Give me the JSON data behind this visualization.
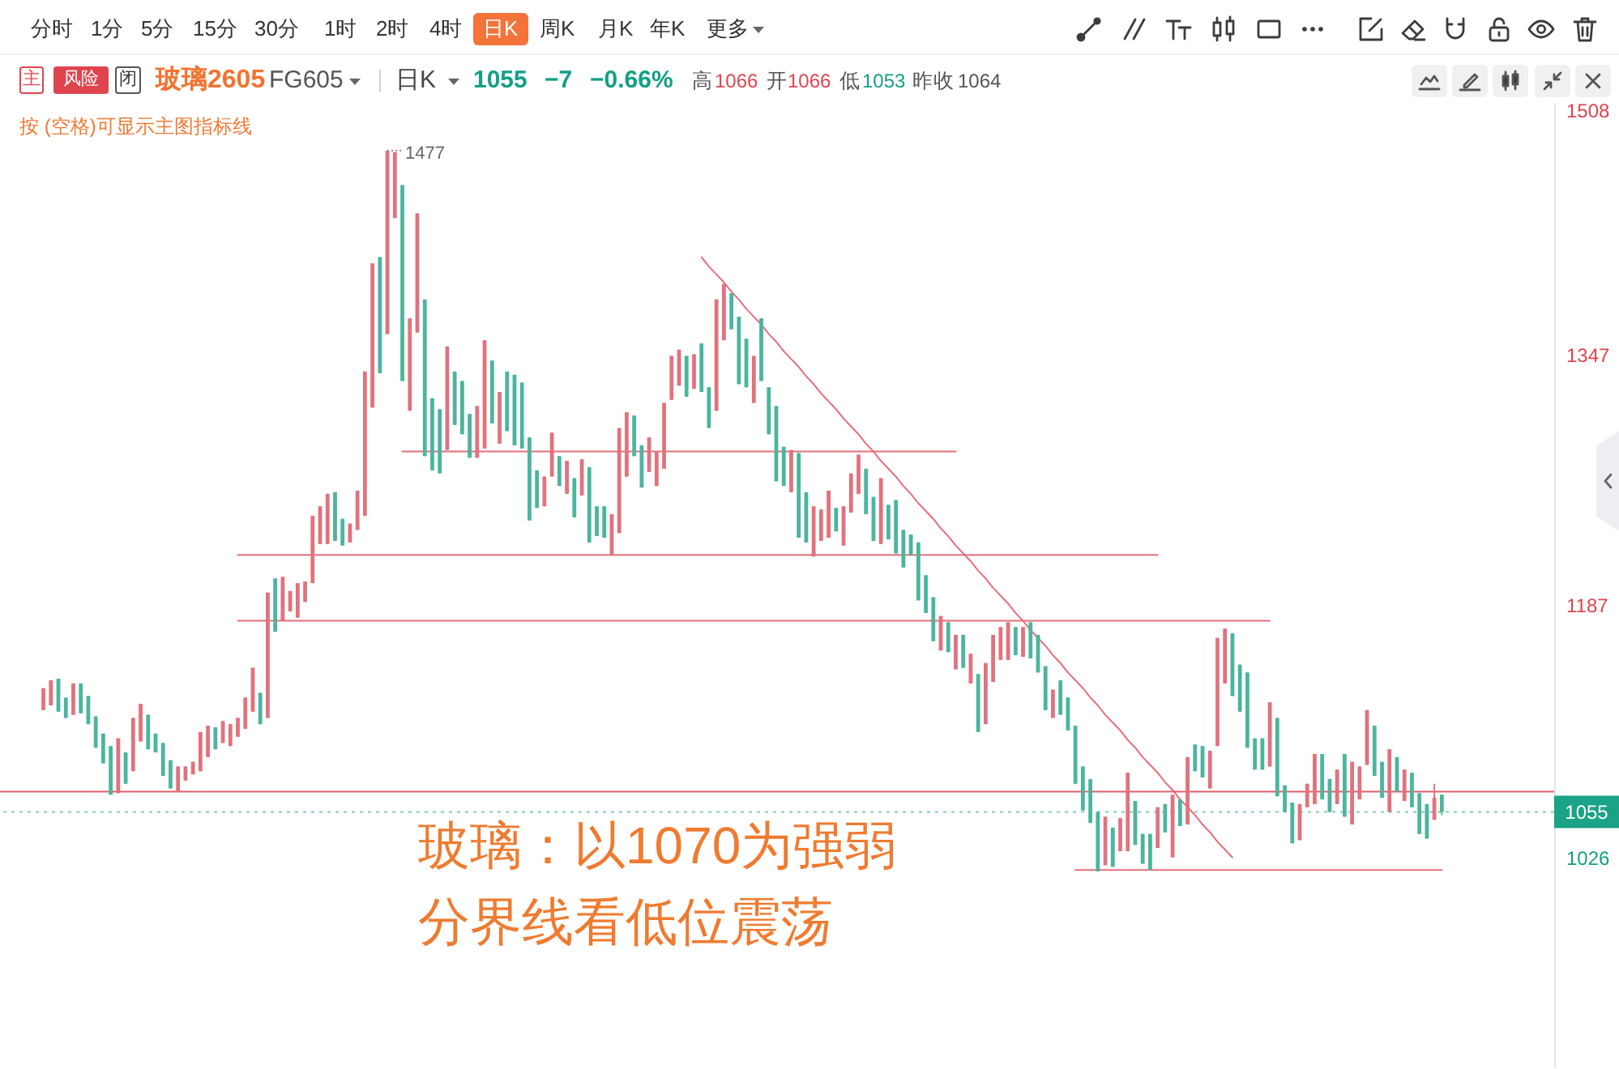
{
  "chart_data": {
    "type": "candlestick",
    "title": "玻璃2605",
    "subtitle": "FG605",
    "categories": [
      null,
      null,
      null,
      null,
      null,
      null,
      null,
      null,
      null,
      null,
      null,
      null,
      null,
      null,
      null,
      null,
      null,
      null,
      null,
      null,
      null,
      null,
      null,
      null,
      null,
      null,
      null,
      null,
      null,
      null,
      null,
      null,
      null,
      null,
      null,
      null,
      null,
      null,
      null,
      null,
      null,
      null,
      null,
      null,
      null,
      null,
      null,
      null,
      null,
      null,
      null,
      null,
      null,
      null,
      null,
      null,
      null,
      null,
      null,
      null,
      null,
      null,
      null,
      null,
      null,
      null,
      null,
      null,
      null,
      null,
      null,
      null,
      null,
      null,
      null,
      null,
      null,
      null,
      null,
      null,
      null,
      null,
      null,
      null,
      null,
      null,
      null,
      null,
      null,
      null,
      null,
      null,
      null,
      null,
      null,
      null,
      null,
      null,
      null,
      null,
      null,
      null,
      null,
      null,
      null,
      null,
      null,
      null,
      null,
      null,
      null,
      null,
      null,
      null,
      null,
      null,
      null,
      null,
      null,
      null,
      null,
      null,
      null,
      null,
      null,
      null,
      null,
      null,
      null,
      null,
      null,
      null,
      null,
      null,
      null,
      null,
      null,
      null,
      null,
      null,
      null,
      null,
      null,
      null,
      null,
      null,
      null,
      null,
      null,
      null,
      null,
      null,
      null,
      null,
      null,
      null,
      null,
      null,
      null,
      null,
      null,
      null,
      null,
      null,
      null,
      null,
      null,
      null,
      null,
      null,
      null,
      null,
      null,
      null,
      null,
      null,
      null,
      null,
      null,
      null,
      null,
      null,
      null,
      null,
      null,
      null,
      null,
      null
    ],
    "ohlc": [
      [
        1120,
        1134,
        1120,
        1134
      ],
      [
        1123,
        1139,
        1123,
        1139
      ],
      [
        1140,
        1140,
        1119,
        1119
      ],
      [
        1128,
        1128,
        1115,
        1115
      ],
      [
        1117,
        1137,
        1117,
        1137
      ],
      [
        1137,
        1137,
        1118,
        1118
      ],
      [
        1129,
        1129,
        1111,
        1111
      ],
      [
        1116,
        1116,
        1096,
        1096
      ],
      [
        1105,
        1105,
        1086,
        1086
      ],
      [
        1097,
        1097,
        1066,
        1066
      ],
      [
        1067,
        1102,
        1067,
        1102
      ],
      [
        1093,
        1093,
        1073,
        1073
      ],
      [
        1081,
        1115,
        1081,
        1115
      ],
      [
        1100,
        1124,
        1100,
        1124
      ],
      [
        1117,
        1117,
        1095,
        1095
      ],
      [
        1105,
        1105,
        1093,
        1093
      ],
      [
        1099,
        1099,
        1078,
        1078
      ],
      [
        1088,
        1088,
        1070,
        1070
      ],
      [
        1068,
        1084,
        1068,
        1084
      ],
      [
        1075,
        1084,
        1075,
        1084
      ],
      [
        1079,
        1087,
        1079,
        1087
      ],
      [
        1081,
        1106,
        1081,
        1106
      ],
      [
        1090,
        1110,
        1090,
        1110
      ],
      [
        1109,
        1109,
        1095,
        1095
      ],
      [
        1099,
        1113,
        1099,
        1113
      ],
      [
        1097,
        1111,
        1097,
        1111
      ],
      [
        1103,
        1115,
        1103,
        1115
      ],
      [
        1108,
        1128,
        1108,
        1128
      ],
      [
        1119,
        1147,
        1119,
        1147
      ],
      [
        1131,
        1131,
        1111,
        1111
      ],
      [
        1115,
        1195,
        1115,
        1195
      ],
      [
        1204,
        1204,
        1170,
        1170
      ],
      [
        1177,
        1205,
        1177,
        1205
      ],
      [
        1183,
        1196,
        1183,
        1196
      ],
      [
        1179,
        1201,
        1179,
        1201
      ],
      [
        1189,
        1202,
        1189,
        1202
      ],
      [
        1201,
        1244,
        1201,
        1244
      ],
      [
        1226,
        1250,
        1226,
        1250
      ],
      [
        1226,
        1258,
        1226,
        1258
      ],
      [
        1259,
        1259,
        1228,
        1228
      ],
      [
        1242,
        1242,
        1225,
        1225
      ],
      [
        1227,
        1239,
        1227,
        1239
      ],
      [
        1235,
        1260,
        1235,
        1260
      ],
      [
        1244,
        1336,
        1244,
        1336
      ],
      [
        1313,
        1405,
        1313,
        1405
      ],
      [
        1409,
        1409,
        1335,
        1335
      ],
      [
        1360,
        1477,
        1360,
        1477
      ],
      [
        1434,
        1476,
        1434,
        1476
      ],
      [
        1455,
        1455,
        1330,
        1330
      ],
      [
        1311,
        1370,
        1311,
        1370
      ],
      [
        1361,
        1437,
        1361,
        1437
      ],
      [
        1382,
        1382,
        1282,
        1282
      ],
      [
        1319,
        1319,
        1273,
        1273
      ],
      [
        1312,
        1312,
        1271,
        1271
      ],
      [
        1286,
        1352,
        1286,
        1352
      ],
      [
        1336,
        1336,
        1302,
        1302
      ],
      [
        1330,
        1330,
        1296,
        1296
      ],
      [
        1309,
        1309,
        1281,
        1281
      ],
      [
        1281,
        1314,
        1281,
        1314
      ],
      [
        1287,
        1356,
        1287,
        1356
      ],
      [
        1343,
        1343,
        1303,
        1303
      ],
      [
        1290,
        1323,
        1290,
        1323
      ],
      [
        1336,
        1336,
        1298,
        1298
      ],
      [
        1334,
        1334,
        1289,
        1289
      ],
      [
        1329,
        1329,
        1287,
        1287
      ],
      [
        1294,
        1294,
        1241,
        1241
      ],
      [
        1273,
        1273,
        1249,
        1249
      ],
      [
        1250,
        1269,
        1250,
        1269
      ],
      [
        1269,
        1297,
        1269,
        1297
      ],
      [
        1282,
        1282,
        1263,
        1263
      ],
      [
        1258,
        1279,
        1258,
        1279
      ],
      [
        1268,
        1268,
        1243,
        1243
      ],
      [
        1257,
        1280,
        1257,
        1280
      ],
      [
        1275,
        1275,
        1227,
        1227
      ],
      [
        1250,
        1250,
        1231,
        1231
      ],
      [
        1250,
        1250,
        1230,
        1230
      ],
      [
        1219,
        1245,
        1219,
        1245
      ],
      [
        1233,
        1300,
        1233,
        1300
      ],
      [
        1269,
        1310,
        1269,
        1310
      ],
      [
        1308,
        1308,
        1282,
        1282
      ],
      [
        1289,
        1289,
        1262,
        1262
      ],
      [
        1272,
        1294,
        1272,
        1294
      ],
      [
        1263,
        1285,
        1263,
        1285
      ],
      [
        1274,
        1316,
        1274,
        1316
      ],
      [
        1318,
        1346,
        1318,
        1346
      ],
      [
        1327,
        1350,
        1327,
        1350
      ],
      [
        1346,
        1346,
        1320,
        1320
      ],
      [
        1325,
        1347,
        1325,
        1347
      ],
      [
        1354,
        1354,
        1323,
        1323
      ],
      [
        1326,
        1326,
        1300,
        1300
      ],
      [
        1311,
        1382,
        1311,
        1382
      ],
      [
        1356,
        1392,
        1356,
        1392
      ],
      [
        1386,
        1386,
        1363,
        1363
      ],
      [
        1371,
        1371,
        1328,
        1328
      ],
      [
        1357,
        1357,
        1326,
        1326
      ],
      [
        1316,
        1346,
        1316,
        1346
      ],
      [
        1370,
        1370,
        1330,
        1330
      ],
      [
        1326,
        1326,
        1296,
        1296
      ],
      [
        1314,
        1314,
        1266,
        1266
      ],
      [
        1288,
        1288,
        1263,
        1263
      ],
      [
        1259,
        1286,
        1259,
        1286
      ],
      [
        1284,
        1284,
        1230,
        1230
      ],
      [
        1259,
        1259,
        1227,
        1227
      ],
      [
        1218,
        1250,
        1218,
        1250
      ],
      [
        1228,
        1248,
        1228,
        1248
      ],
      [
        1230,
        1260,
        1230,
        1260
      ],
      [
        1249,
        1249,
        1234,
        1234
      ],
      [
        1225,
        1250,
        1225,
        1250
      ],
      [
        1246,
        1271,
        1246,
        1271
      ],
      [
        1258,
        1283,
        1258,
        1283
      ],
      [
        1274,
        1274,
        1245,
        1245
      ],
      [
        1256,
        1256,
        1228,
        1228
      ],
      [
        1226,
        1268,
        1226,
        1268
      ],
      [
        1251,
        1251,
        1229,
        1229
      ],
      [
        1254,
        1254,
        1220,
        1220
      ],
      [
        1235,
        1235,
        1211,
        1211
      ],
      [
        1232,
        1232,
        1219,
        1219
      ],
      [
        1227,
        1227,
        1190,
        1190
      ],
      [
        1206,
        1206,
        1182,
        1182
      ],
      [
        1192,
        1192,
        1164,
        1164
      ],
      [
        1158,
        1180,
        1158,
        1180
      ],
      [
        1176,
        1176,
        1157,
        1157
      ],
      [
        1146,
        1168,
        1146,
        1168
      ],
      [
        1168,
        1168,
        1147,
        1147
      ],
      [
        1137,
        1156,
        1137,
        1156
      ],
      [
        1143,
        1143,
        1106,
        1106
      ],
      [
        1111,
        1150,
        1111,
        1150
      ],
      [
        1138,
        1168,
        1138,
        1168
      ],
      [
        1152,
        1173,
        1152,
        1173
      ],
      [
        1152,
        1176,
        1152,
        1176
      ],
      [
        1173,
        1173,
        1155,
        1155
      ],
      [
        1154,
        1173,
        1154,
        1173
      ],
      [
        1176,
        1176,
        1153,
        1153
      ],
      [
        1168,
        1168,
        1144,
        1144
      ],
      [
        1148,
        1148,
        1120,
        1120
      ],
      [
        1115,
        1133,
        1115,
        1133
      ],
      [
        1139,
        1139,
        1117,
        1117
      ],
      [
        1128,
        1128,
        1107,
        1107
      ],
      [
        1110,
        1110,
        1073,
        1073
      ],
      [
        1084,
        1084,
        1056,
        1056
      ],
      [
        1076,
        1076,
        1048,
        1048
      ],
      [
        1055,
        1055,
        1017,
        1017
      ],
      [
        1021,
        1052,
        1021,
        1052
      ],
      [
        1045,
        1045,
        1020,
        1020
      ],
      [
        1030,
        1051,
        1030,
        1051
      ],
      [
        1030,
        1080,
        1030,
        1080
      ],
      [
        1062,
        1062,
        1034,
        1034
      ],
      [
        1041,
        1041,
        1022,
        1022
      ],
      [
        1041,
        1041,
        1018,
        1018
      ],
      [
        1032,
        1058,
        1032,
        1058
      ],
      [
        1060,
        1060,
        1042,
        1042
      ],
      [
        1026,
        1066,
        1026,
        1066
      ],
      [
        1063,
        1063,
        1046,
        1046
      ],
      [
        1047,
        1090,
        1047,
        1090
      ],
      [
        1098,
        1098,
        1081,
        1081
      ],
      [
        1097,
        1097,
        1077,
        1077
      ],
      [
        1070,
        1094,
        1070,
        1094
      ],
      [
        1097,
        1166,
        1097,
        1166
      ],
      [
        1137,
        1172,
        1137,
        1172
      ],
      [
        1169,
        1169,
        1129,
        1129
      ],
      [
        1149,
        1149,
        1119,
        1119
      ],
      [
        1144,
        1144,
        1096,
        1096
      ],
      [
        1102,
        1102,
        1082,
        1082
      ],
      [
        1102,
        1102,
        1082,
        1082
      ],
      [
        1084,
        1125,
        1084,
        1125
      ],
      [
        1115,
        1115,
        1065,
        1065
      ],
      [
        1072,
        1072,
        1055,
        1055
      ],
      [
        1061,
        1061,
        1035,
        1035
      ],
      [
        1037,
        1060,
        1037,
        1060
      ],
      [
        1058,
        1073,
        1058,
        1073
      ],
      [
        1060,
        1092,
        1060,
        1092
      ],
      [
        1092,
        1092,
        1063,
        1063
      ],
      [
        1076,
        1076,
        1055,
        1055
      ],
      [
        1060,
        1082,
        1060,
        1082
      ],
      [
        1092,
        1092,
        1052,
        1052
      ],
      [
        1047,
        1087,
        1047,
        1087
      ],
      [
        1063,
        1084,
        1063,
        1084
      ],
      [
        1085,
        1120,
        1085,
        1120
      ],
      [
        1110,
        1110,
        1078,
        1078
      ],
      [
        1087,
        1087,
        1064,
        1064
      ],
      [
        1055,
        1095,
        1055,
        1095
      ],
      [
        1090,
        1090,
        1068,
        1068
      ],
      [
        1062,
        1082,
        1062,
        1082
      ],
      [
        1080,
        1080,
        1058,
        1058
      ],
      [
        1067,
        1067,
        1041,
        1041
      ],
      [
        1060,
        1060,
        1038,
        1038
      ],
      [
        1050,
        1073,
        1050,
        1064
      ],
      [
        1066,
        1066,
        1053,
        1055
      ]
    ],
    "colors": [
      "#e1727c",
      "#e1727c",
      "#4bb59d",
      "#4bb59d",
      "#e1727c",
      "#4bb59d",
      "#4bb59d",
      "#4bb59d",
      "#4bb59d",
      "#4bb59d",
      "#e1727c",
      "#4bb59d",
      "#e1727c",
      "#e1727c",
      "#4bb59d",
      "#4bb59d",
      "#4bb59d",
      "#4bb59d",
      "#e1727c",
      "#e1727c",
      "#e1727c",
      "#e1727c",
      "#e1727c",
      "#4bb59d",
      "#e1727c",
      "#e1727c",
      "#e1727c",
      "#e1727c",
      "#e1727c",
      "#4bb59d",
      "#e1727c",
      "#4bb59d",
      "#e1727c",
      "#e1727c",
      "#e1727c",
      "#e1727c",
      "#e1727c",
      "#e1727c",
      "#e1727c",
      "#4bb59d",
      "#4bb59d",
      "#e1727c",
      "#e1727c",
      "#e1727c",
      "#e1727c",
      "#4bb59d",
      "#e1727c",
      "#e1727c",
      "#4bb59d",
      "#e1727c",
      "#e1727c",
      "#4bb59d",
      "#4bb59d",
      "#4bb59d",
      "#e1727c",
      "#4bb59d",
      "#4bb59d",
      "#4bb59d",
      "#e1727c",
      "#e1727c",
      "#4bb59d",
      "#e1727c",
      "#4bb59d",
      "#4bb59d",
      "#4bb59d",
      "#4bb59d",
      "#4bb59d",
      "#e1727c",
      "#e1727c",
      "#4bb59d",
      "#e1727c",
      "#4bb59d",
      "#e1727c",
      "#4bb59d",
      "#4bb59d",
      "#4bb59d",
      "#e1727c",
      "#e1727c",
      "#e1727c",
      "#4bb59d",
      "#4bb59d",
      "#e1727c",
      "#e1727c",
      "#e1727c",
      "#e1727c",
      "#e1727c",
      "#4bb59d",
      "#e1727c",
      "#4bb59d",
      "#4bb59d",
      "#e1727c",
      "#e1727c",
      "#4bb59d",
      "#4bb59d",
      "#4bb59d",
      "#e1727c",
      "#4bb59d",
      "#4bb59d",
      "#4bb59d",
      "#4bb59d",
      "#e1727c",
      "#4bb59d",
      "#4bb59d",
      "#e1727c",
      "#e1727c",
      "#e1727c",
      "#4bb59d",
      "#e1727c",
      "#e1727c",
      "#e1727c",
      "#4bb59d",
      "#4bb59d",
      "#e1727c",
      "#4bb59d",
      "#4bb59d",
      "#4bb59d",
      "#4bb59d",
      "#4bb59d",
      "#4bb59d",
      "#4bb59d",
      "#e1727c",
      "#4bb59d",
      "#e1727c",
      "#4bb59d",
      "#e1727c",
      "#4bb59d",
      "#e1727c",
      "#e1727c",
      "#e1727c",
      "#e1727c",
      "#4bb59d",
      "#e1727c",
      "#4bb59d",
      "#4bb59d",
      "#4bb59d",
      "#e1727c",
      "#4bb59d",
      "#4bb59d",
      "#4bb59d",
      "#4bb59d",
      "#4bb59d",
      "#4bb59d",
      "#e1727c",
      "#4bb59d",
      "#e1727c",
      "#e1727c",
      "#4bb59d",
      "#4bb59d",
      "#4bb59d",
      "#e1727c",
      "#4bb59d",
      "#e1727c",
      "#4bb59d",
      "#e1727c",
      "#4bb59d",
      "#4bb59d",
      "#e1727c",
      "#e1727c",
      "#e1727c",
      "#4bb59d",
      "#4bb59d",
      "#4bb59d",
      "#4bb59d",
      "#4bb59d",
      "#e1727c",
      "#4bb59d",
      "#4bb59d",
      "#4bb59d",
      "#e1727c",
      "#e1727c",
      "#e1727c",
      "#4bb59d",
      "#4bb59d",
      "#e1727c",
      "#4bb59d",
      "#e1727c",
      "#e1727c",
      "#e1727c",
      "#4bb59d",
      "#4bb59d",
      "#e1727c",
      "#4bb59d",
      "#e1727c",
      "#4bb59d",
      "#4bb59d",
      "#4bb59d",
      "#e1727c",
      "#4bb59d"
    ],
    "series": [
      {
        "type": "line",
        "color": "#e46f7a",
        "values": [
          null,
          null,
          null,
          null,
          null,
          null,
          null,
          null,
          null,
          null,
          null,
          null,
          null,
          null,
          null,
          null,
          null,
          null,
          null,
          null,
          null,
          null,
          null,
          null,
          null,
          null,
          null,
          null,
          null,
          null,
          null,
          null,
          null,
          null,
          null,
          null,
          null,
          null,
          null,
          null,
          null,
          null,
          null,
          null,
          null,
          null,
          null,
          null,
          1285,
          1285,
          1285,
          1285,
          1285,
          1285,
          1285,
          1285,
          1285,
          1285,
          1285,
          1285,
          1285,
          1285,
          1285,
          1285,
          1285,
          1285,
          1285,
          1285,
          1285,
          1285,
          1285,
          1285,
          1285,
          1285,
          1285,
          1285,
          1285,
          1285,
          1285,
          1285,
          1285,
          1285,
          1285,
          1285,
          1285,
          1285,
          1285,
          1285,
          1285,
          1285,
          1285,
          1285,
          1285,
          1285,
          1285,
          1285,
          1285,
          1285,
          1285,
          1285,
          1285,
          1285,
          1285,
          1285,
          1285,
          1285,
          1285,
          1285,
          1285,
          1285,
          1285,
          1285,
          1285,
          1285,
          1285,
          1285,
          1285,
          1285,
          1285,
          1285,
          1285,
          1285,
          1285,
          null,
          null,
          null,
          null,
          null,
          null,
          null,
          null,
          null,
          null,
          null,
          null,
          null,
          null,
          null,
          null,
          null,
          null,
          null,
          null,
          null,
          null,
          null,
          null,
          null,
          null,
          null,
          null,
          null,
          null,
          null,
          null,
          null,
          null,
          null,
          null,
          null,
          null,
          null,
          null,
          null,
          null,
          null,
          null,
          null,
          null,
          null,
          null,
          null,
          null,
          null,
          null,
          null,
          null,
          null,
          null,
          null,
          null,
          null,
          null,
          null,
          null,
          null,
          null,
          null
        ]
      },
      {
        "type": "line",
        "color": "#e46f7a",
        "values": [
          null,
          null,
          null,
          null,
          null,
          null,
          null,
          null,
          null,
          null,
          null,
          null,
          null,
          null,
          null,
          null,
          null,
          null,
          null,
          null,
          null,
          null,
          null,
          null,
          null,
          null,
          1219,
          1219,
          1219,
          1219,
          1219,
          1219,
          1219,
          1219,
          1219,
          1219,
          1219,
          1219,
          1219,
          1219,
          1219,
          1219,
          1219,
          1219,
          1219,
          1219,
          1219,
          1219,
          1219,
          1219,
          1219,
          1219,
          1219,
          1219,
          1219,
          1219,
          1219,
          1219,
          1219,
          1219,
          1219,
          1219,
          1219,
          1219,
          1219,
          1219,
          1219,
          1219,
          1219,
          1219,
          1219,
          1219,
          1219,
          1219,
          1219,
          1219,
          1219,
          1219,
          1219,
          1219,
          1219,
          1219,
          1219,
          1219,
          1219,
          1219,
          1219,
          1219,
          1219,
          1219,
          1219,
          1219,
          1219,
          1219,
          1219,
          1219,
          1219,
          1219,
          1219,
          1219,
          1219,
          1219,
          1219,
          1219,
          1219,
          1219,
          1219,
          1219,
          1219,
          1219,
          1219,
          1219,
          1219,
          1219,
          1219,
          1219,
          1219,
          1219,
          1219,
          1219,
          1219,
          1219,
          1219,
          1219,
          1219,
          1219,
          1219,
          1219,
          1219,
          1219,
          1219,
          1219,
          1219,
          1219,
          1219,
          1219,
          1219,
          1219,
          1219,
          1219,
          1219,
          1219,
          1219,
          1219,
          1219,
          1219,
          1219,
          1219,
          1219,
          1219,
          null,
          null,
          null,
          null,
          null,
          null,
          null,
          null,
          null,
          null,
          null,
          null,
          null,
          null,
          null,
          null,
          null,
          null,
          null,
          null,
          null,
          null,
          null,
          null,
          null,
          null,
          null,
          null,
          null,
          null,
          null,
          null,
          null,
          null,
          null,
          null,
          null,
          null
        ]
      },
      {
        "type": "line",
        "color": "#e46f7a",
        "values": [
          null,
          null,
          null,
          null,
          null,
          null,
          null,
          null,
          null,
          null,
          null,
          null,
          null,
          null,
          null,
          null,
          null,
          null,
          null,
          null,
          null,
          null,
          null,
          null,
          null,
          null,
          1177,
          1177,
          1177,
          1177,
          1177,
          1177,
          1177,
          1177,
          1177,
          1177,
          1177,
          1177,
          1177,
          1177,
          1177,
          1177,
          1177,
          1177,
          1177,
          1177,
          1177,
          1177,
          1177,
          1177,
          1177,
          1177,
          1177,
          1177,
          1177,
          1177,
          1177,
          1177,
          1177,
          1177,
          1177,
          1177,
          1177,
          1177,
          1177,
          1177,
          1177,
          1177,
          1177,
          1177,
          1177,
          1177,
          1177,
          1177,
          1177,
          1177,
          1177,
          1177,
          1177,
          1177,
          1177,
          1177,
          1177,
          1177,
          1177,
          1177,
          1177,
          1177,
          1177,
          1177,
          1177,
          1177,
          1177,
          1177,
          1177,
          1177,
          1177,
          1177,
          1177,
          1177,
          1177,
          1177,
          1177,
          1177,
          1177,
          1177,
          1177,
          1177,
          1177,
          1177,
          1177,
          1177,
          1177,
          1177,
          1177,
          1177,
          1177,
          1177,
          1177,
          1177,
          1177,
          1177,
          1177,
          1177,
          1177,
          1177,
          1177,
          1177,
          1177,
          1177,
          1177,
          1177,
          1177,
          1177,
          1177,
          1177,
          1177,
          1177,
          1177,
          1177,
          1177,
          1177,
          1177,
          1177,
          1177,
          1177,
          1177,
          1177,
          1177,
          1177,
          1177,
          1177,
          1177,
          1177,
          1177,
          1177,
          1177,
          1177,
          1177,
          1177,
          1177,
          1177,
          1177,
          1177,
          1177,
          null,
          null,
          null,
          null,
          null,
          null,
          null,
          null,
          null,
          null,
          null,
          null,
          null,
          null,
          null,
          null,
          null,
          null,
          null,
          null,
          null,
          null,
          null
        ]
      },
      {
        "type": "line",
        "color": "#e46f7a",
        "values": [
          null,
          null,
          null,
          null,
          null,
          null,
          null,
          null,
          null,
          null,
          null,
          null,
          null,
          null,
          null,
          null,
          null,
          null,
          null,
          null,
          null,
          null,
          null,
          null,
          null,
          null,
          null,
          null,
          null,
          null,
          null,
          null,
          null,
          null,
          null,
          null,
          null,
          null,
          null,
          null,
          null,
          null,
          null,
          null,
          null,
          null,
          null,
          null,
          null,
          null,
          null,
          null,
          null,
          null,
          null,
          null,
          null,
          null,
          null,
          null,
          null,
          null,
          null,
          null,
          null,
          null,
          null,
          null,
          null,
          null,
          null,
          null,
          null,
          null,
          null,
          null,
          null,
          null,
          null,
          null,
          null,
          null,
          null,
          null,
          null,
          null,
          null,
          null,
          null,
          null,
          null,
          null,
          null,
          null,
          null,
          null,
          null,
          null,
          null,
          null,
          null,
          null,
          null,
          null,
          null,
          null,
          null,
          null,
          null,
          null,
          null,
          null,
          null,
          null,
          null,
          null,
          null,
          null,
          null,
          null,
          null,
          null,
          null,
          null,
          null,
          null,
          null,
          null,
          null,
          null,
          null,
          null,
          null,
          null,
          null,
          null,
          null,
          null,
          1018,
          1018,
          1018,
          1018,
          1018,
          1018,
          1018,
          1018,
          1018,
          1018,
          1018,
          1018,
          1018,
          1018,
          1018,
          1018,
          1018,
          1018,
          1018,
          1018,
          1018,
          1018,
          1018,
          1018,
          1018,
          1018,
          1018,
          1018,
          1018,
          1018,
          1018,
          1018,
          1018,
          1018,
          1018,
          1018,
          1018,
          1018,
          1018,
          1018,
          1018,
          1018,
          1018,
          1018,
          1018,
          1018,
          1018,
          1018,
          1018,
          1018
        ]
      },
      {
        "type": "line",
        "color": "#e46f7a",
        "values": [
          null,
          null,
          null,
          null,
          null,
          null,
          null,
          null,
          null,
          null,
          null,
          null,
          null,
          null,
          null,
          null,
          null,
          null,
          null,
          null,
          null,
          null,
          null,
          null,
          null,
          null,
          null,
          null,
          null,
          null,
          null,
          null,
          null,
          null,
          null,
          null,
          null,
          null,
          null,
          null,
          null,
          null,
          null,
          null,
          null,
          null,
          null,
          null,
          null,
          null,
          null,
          null,
          null,
          null,
          null,
          null,
          null,
          null,
          null,
          null,
          null,
          null,
          null,
          null,
          null,
          null,
          null,
          null,
          null,
          null,
          null,
          null,
          null,
          null,
          null,
          null,
          null,
          null,
          null,
          null,
          null,
          null,
          null,
          null,
          null,
          null,
          null,
          null,
          1409,
          1403,
          1398,
          1393,
          1387,
          1382,
          1376,
          1371,
          1366,
          1360,
          1355,
          1349,
          1344,
          1339,
          1333,
          1328,
          1322,
          1317,
          1312,
          1306,
          1301,
          1296,
          1290,
          1285,
          1279,
          1274,
          1269,
          1263,
          1258,
          1252,
          1247,
          1242,
          1236,
          1231,
          1225,
          1220,
          1215,
          1209,
          1204,
          1198,
          1193,
          1188,
          1182,
          1177,
          1171,
          1166,
          1161,
          1155,
          1150,
          1144,
          1139,
          1134,
          1128,
          1123,
          1117,
          1112,
          1107,
          1101,
          1096,
          1090,
          1085,
          1080,
          1074,
          1069,
          1063,
          1058,
          1053,
          1047,
          1042,
          1036,
          1031,
          1026,
          null,
          null,
          null,
          null,
          null,
          null,
          null,
          null,
          null,
          null,
          null,
          null,
          null,
          null,
          null,
          null,
          null,
          null,
          null,
          null,
          null,
          null,
          null,
          null,
          null,
          null,
          null,
          null
        ]
      }
    ],
    "ylim": [
      892,
      1508
    ],
    "yticks": [
      1508,
      1347,
      1187,
      1026
    ],
    "ref_lines": [
      {
        "axis": "y",
        "value": 1068,
        "color": "#e0606c"
      },
      {
        "axis": "y",
        "value": 1055,
        "label": "1055",
        "color": "#1aa386",
        "line_style": "dotted"
      }
    ],
    "annotations": [
      "分时",
      "1分",
      "5分",
      "15分",
      "30分",
      "1时",
      "2时",
      "4时",
      "日K",
      "周K",
      "月K",
      "年K",
      "更多",
      "主",
      "风险",
      "闭",
      "日K",
      "1055",
      "−7",
      "−0.66%",
      "高",
      "1066",
      "开",
      "1066",
      "低",
      "1053",
      "昨收",
      "1064",
      "按 (空格)可显示主图指标线",
      "1477",
      "玻璃：以1070为强弱分界线看低位震荡"
    ]
  }
}
